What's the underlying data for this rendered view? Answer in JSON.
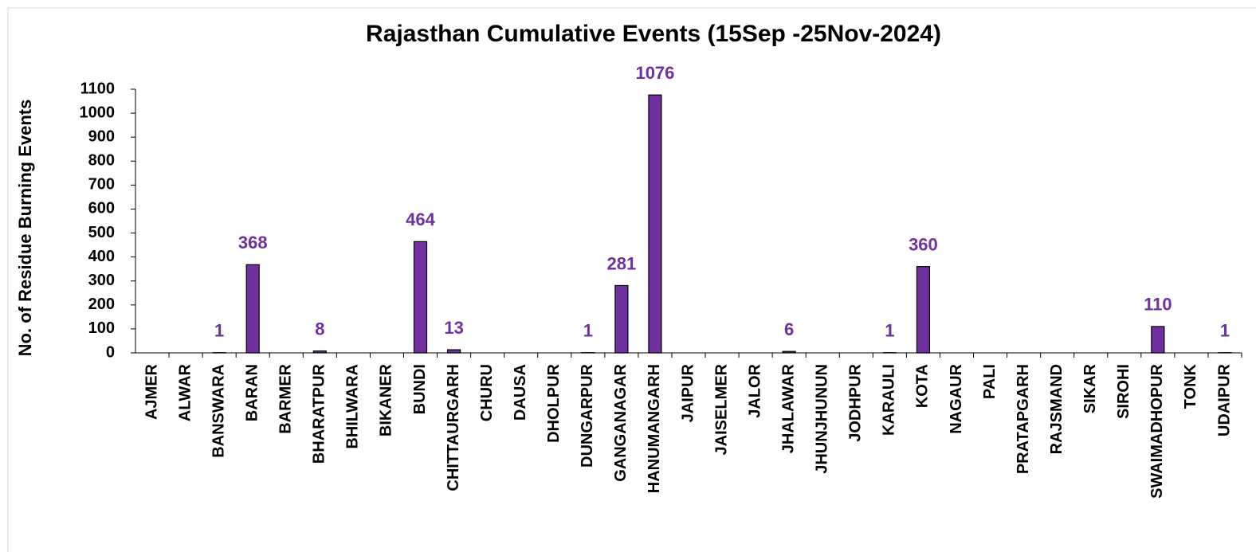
{
  "chart_data": {
    "type": "bar",
    "title": "Rajasthan Cumulative Events (15Sep -25Nov-2024)",
    "y_label": "No. of Residue Burning Events",
    "categories": [
      "AJMER",
      "ALWAR",
      "BANSWARA",
      "BARAN",
      "BARMER",
      "BHARATPUR",
      "BHILWARA",
      "BIKANER",
      "BUNDI",
      "CHITTAURGARH",
      "CHURU",
      "DAUSA",
      "DHOLPUR",
      "DUNGARPUR",
      "GANGANAGAR",
      "HANUMANGARH",
      "JAIPUR",
      "JAISELMER",
      "JALOR",
      "JHALAWAR",
      "JHUNJHUNUN",
      "JODHPUR",
      "KARAULI",
      "KOTA",
      "NAGAUR",
      "PALI",
      "PRATAPGARH",
      "RAJSMAND",
      "SIKAR",
      "SIROHI",
      "SWAIMADHOPUR",
      "TONK",
      "UDAIPUR"
    ],
    "values": [
      0,
      0,
      1,
      368,
      0,
      8,
      0,
      0,
      464,
      13,
      0,
      0,
      0,
      1,
      281,
      1076,
      0,
      0,
      0,
      6,
      0,
      0,
      1,
      360,
      0,
      0,
      0,
      0,
      0,
      0,
      110,
      0,
      1
    ],
    "color": "#7030a0",
    "ylim": [
      0,
      1100
    ],
    "yticks": [
      0,
      100,
      200,
      300,
      400,
      500,
      600,
      700,
      800,
      900,
      1000,
      1100
    ],
    "grid": false
  }
}
